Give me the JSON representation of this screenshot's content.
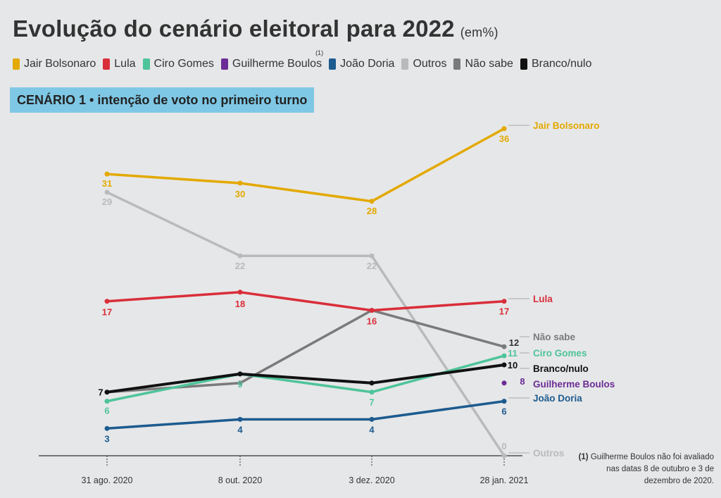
{
  "title": "Evolução do cenário eleitoral para 2022",
  "title_unit": "(em%)",
  "legend": [
    {
      "label": "Jair Bolsonaro",
      "color": "#e3a900"
    },
    {
      "label": "Lula",
      "color": "#d92e3a"
    },
    {
      "label": "Ciro Gomes",
      "color": "#4ec49a"
    },
    {
      "label": "Guilherme Boulos",
      "color": "#6b2c96",
      "sup": "(1)"
    },
    {
      "label": "João Doria",
      "color": "#1c5b8f"
    },
    {
      "label": "Outros",
      "color": "#b9babb"
    },
    {
      "label": "Não sabe",
      "color": "#7a7a7a"
    },
    {
      "label": "Branco/nulo",
      "color": "#111111"
    }
  ],
  "scenario_label": "CENÁRIO 1 • intenção de voto no primeiro turno",
  "footnote": {
    "marker": "(1)",
    "text": "Guilherme Boulos não foi avaliado nas datas 8 de outubro e 3 de dezembro de 2020."
  },
  "chart_data": {
    "type": "line",
    "title": "Evolução do cenário eleitoral para 2022",
    "unit": "(em%)",
    "categories": [
      "31 ago. 2020",
      "8 out. 2020",
      "3 dez. 2020",
      "28 jan. 2021"
    ],
    "ylim": [
      0,
      40
    ],
    "grid": false,
    "legend_position": "top",
    "series": [
      {
        "name": "Jair Bolsonaro",
        "color": "#e3a900",
        "values": [
          31,
          30,
          28,
          36
        ]
      },
      {
        "name": "Lula",
        "color": "#d92e3a",
        "values": [
          17,
          18,
          16,
          17
        ]
      },
      {
        "name": "Ciro Gomes",
        "color": "#4ec49a",
        "values": [
          6,
          9,
          7,
          11
        ]
      },
      {
        "name": "Guilherme Boulos",
        "color": "#6b2c96",
        "values": [
          null,
          null,
          null,
          8
        ]
      },
      {
        "name": "João Doria",
        "color": "#1c5b8f",
        "values": [
          3,
          4,
          4,
          6
        ]
      },
      {
        "name": "Outros",
        "color": "#b9babb",
        "values": [
          29,
          22,
          22,
          0
        ]
      },
      {
        "name": "Não sabe",
        "color": "#7a7a7a",
        "values": [
          7,
          8,
          16,
          12
        ]
      },
      {
        "name": "Branco/nulo",
        "color": "#111111",
        "values": [
          7,
          9,
          8,
          10
        ]
      }
    ]
  }
}
